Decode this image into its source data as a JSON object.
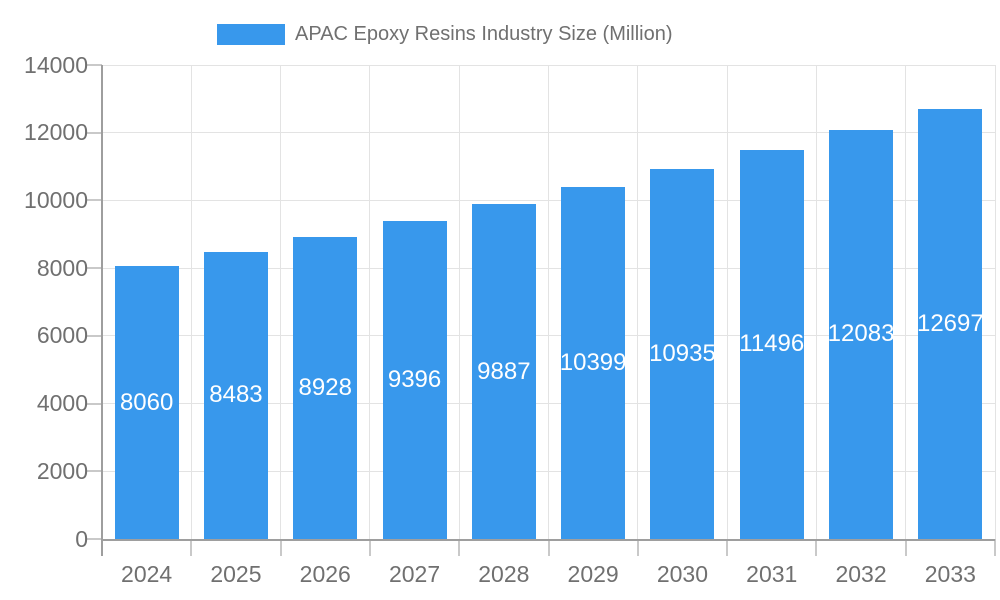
{
  "legend": {
    "label": "APAC Epoxy Resins Industry Size (Million)"
  },
  "chart_data": {
    "type": "bar",
    "title": "",
    "legend_label": "APAC Epoxy Resins Industry Size (Million)",
    "legend_position": "top-center",
    "categories": [
      "2024",
      "2025",
      "2026",
      "2027",
      "2028",
      "2029",
      "2030",
      "2031",
      "2032",
      "2033"
    ],
    "values": [
      8060,
      8483,
      8928,
      9396,
      9887,
      10399,
      10935,
      11496,
      12083,
      12697
    ],
    "value_labels_shown": true,
    "value_label_position": "inside-middle",
    "xlabel": "",
    "ylabel": "",
    "ylim": [
      0,
      14000
    ],
    "yticks": [
      0,
      2000,
      4000,
      6000,
      8000,
      10000,
      12000,
      14000
    ],
    "grid": true,
    "colors": {
      "bar": "#3898EC",
      "grid": "#E3E3E3",
      "axis": "#9E9E9E",
      "tick_mark": "#C9C9C9",
      "axis_label": "#707070",
      "value_label": "#FFFFFF",
      "background": "#FFFFFF"
    }
  }
}
